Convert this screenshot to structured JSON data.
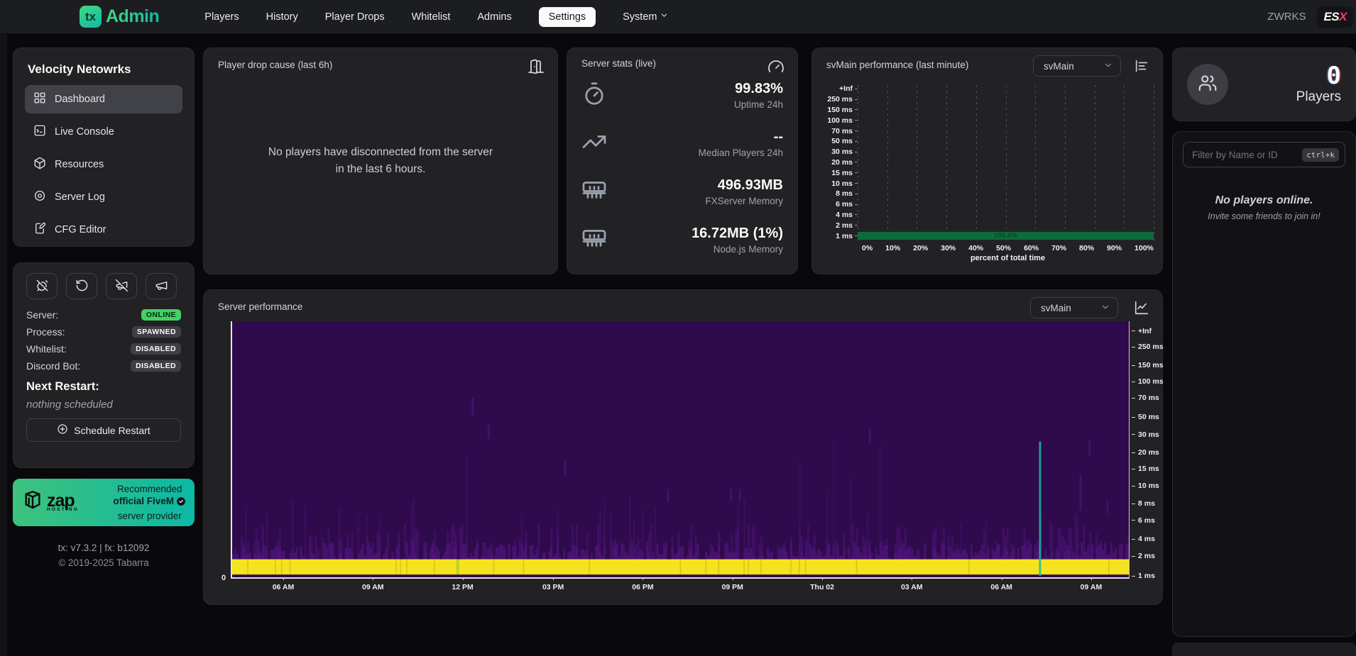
{
  "topnav": {
    "brand": {
      "logo_text": "tx",
      "name": "Admin"
    },
    "links": [
      {
        "label": "Players"
      },
      {
        "label": "History"
      },
      {
        "label": "Player Drops"
      },
      {
        "label": "Whitelist"
      },
      {
        "label": "Admins"
      },
      {
        "label": "Settings"
      },
      {
        "label": "System"
      }
    ],
    "profile_name": "ZWRKS",
    "server_badge": {
      "part1": "ES",
      "part2": "X"
    }
  },
  "sidebar": {
    "server_name": "Velocity Netowrks",
    "nav": [
      {
        "label": "Dashboard"
      },
      {
        "label": "Live Console"
      },
      {
        "label": "Resources"
      },
      {
        "label": "Server Log"
      },
      {
        "label": "CFG Editor"
      }
    ],
    "status": {
      "rows": [
        {
          "label": "Server:",
          "value": "ONLINE"
        },
        {
          "label": "Process:",
          "value": "SPAWNED"
        },
        {
          "label": "Whitelist:",
          "value": "DISABLED"
        },
        {
          "label": "Discord Bot:",
          "value": "DISABLED"
        }
      ],
      "next_restart_title": "Next Restart:",
      "next_restart_value": "nothing scheduled",
      "schedule_button": "Schedule Restart"
    },
    "zap_banner": {
      "logo": "zap",
      "logo_sub": "HOSTING",
      "line1": "Recommended",
      "line2": "official FiveM",
      "line3": "server provider"
    },
    "footer": {
      "versions": "tx: v7.3.2 | fx: b12092",
      "copyright": "© 2019-2025 Tabarra"
    }
  },
  "cards": {
    "drop_cause": {
      "title": "Player drop cause (last 6h)",
      "empty_message": "No players have disconnected from the server in the last 6 hours."
    },
    "server_stats": {
      "title": "Server stats (live)",
      "stats": [
        {
          "value": "99.83%",
          "label": "Uptime 24h"
        },
        {
          "value": "--",
          "label": "Median Players 24h"
        },
        {
          "value": "496.93MB",
          "label": "FXServer Memory"
        },
        {
          "value": "16.72MB (1%)",
          "label": "Node.js Memory"
        }
      ]
    },
    "svmain_minute": {
      "title": "svMain performance (last minute)",
      "thread_selector": "svMain"
    },
    "server_perf": {
      "title": "Server performance",
      "thread_selector": "svMain"
    }
  },
  "playerlist": {
    "count": "0",
    "label": "Players",
    "filter_placeholder": "Filter by Name or ID",
    "shortcut": "ctrl+k",
    "empty_title": "No players online.",
    "empty_subtitle": "Invite some friends to join in!"
  },
  "chart_data": [
    {
      "type": "bar",
      "orientation": "horizontal",
      "title": "svMain performance (last minute)",
      "categories": [
        "+Inf",
        "250 ms",
        "150 ms",
        "100 ms",
        "70 ms",
        "50 ms",
        "30 ms",
        "20 ms",
        "15 ms",
        "10 ms",
        "8 ms",
        "6 ms",
        "4 ms",
        "2 ms",
        "1 ms"
      ],
      "values": [
        0,
        0,
        0,
        0,
        0,
        0,
        0,
        0,
        0,
        0,
        0,
        0,
        0,
        0,
        100.0
      ],
      "bar_label": "100.0%",
      "xlabel": "percent of total time",
      "xticks": [
        "0%",
        "10%",
        "20%",
        "30%",
        "40%",
        "50%",
        "60%",
        "70%",
        "80%",
        "90%",
        "100%"
      ],
      "xlim": [
        0,
        100
      ],
      "grid": "dashed-vertical",
      "bar_color": "#0e6b3c",
      "bar_label_color": "#0a4a28"
    },
    {
      "type": "heatmap",
      "title": "Server performance",
      "x_labels": [
        "06 AM",
        "09 AM",
        "12 PM",
        "03 PM",
        "06 PM",
        "09 PM",
        "Thu 02",
        "03 AM",
        "06 AM",
        "09 AM"
      ],
      "y_labels": [
        "+Inf",
        "250 ms",
        "150 ms",
        "100 ms",
        "70 ms",
        "50 ms",
        "30 ms",
        "20 ms",
        "15 ms",
        "10 ms",
        "8 ms",
        "6 ms",
        "4 ms",
        "2 ms",
        "1 ms"
      ],
      "origin_label": "0",
      "hot_row": "1 ms",
      "summary": "Nearly all ticks at ~1 ms (solid yellow bottom band); frequent 2-4 ms noise; sparse spikes up to 15-50 ms; one teal column near 07-08 AM",
      "colors": {
        "background": "#2f0a4c",
        "noise": "#5a1a8c",
        "noise2": "#4b1375",
        "hot_band": "#f5e41d",
        "accent_teal": "#1cb9a4",
        "accent_green": "#86c232"
      },
      "seed": 1337,
      "accent_teal_x": 0.9,
      "accent_green_x": 0.25,
      "spike_columns": [
        {
          "x": 0.267,
          "y_frac": 0.3,
          "h_frac": 0.07
        },
        {
          "x": 0.285,
          "y_frac": 0.4,
          "h_frac": 0.06
        },
        {
          "x": 0.37,
          "y_frac": 0.545,
          "h_frac": 0.06
        },
        {
          "x": 0.485,
          "y_frac": 0.655,
          "h_frac": 0.05
        },
        {
          "x": 0.555,
          "y_frac": 0.655,
          "h_frac": 0.05
        },
        {
          "x": 0.565,
          "y_frac": 0.655,
          "h_frac": 0.05
        },
        {
          "x": 0.71,
          "y_frac": 0.42,
          "h_frac": 0.06
        },
        {
          "x": 0.945,
          "y_frac": 0.6,
          "h_frac": 0.14
        },
        {
          "x": 0.955,
          "y_frac": 0.465,
          "h_frac": 0.06
        },
        {
          "x": 0.975,
          "y_frac": 0.7,
          "h_frac": 0.05
        }
      ]
    }
  ]
}
